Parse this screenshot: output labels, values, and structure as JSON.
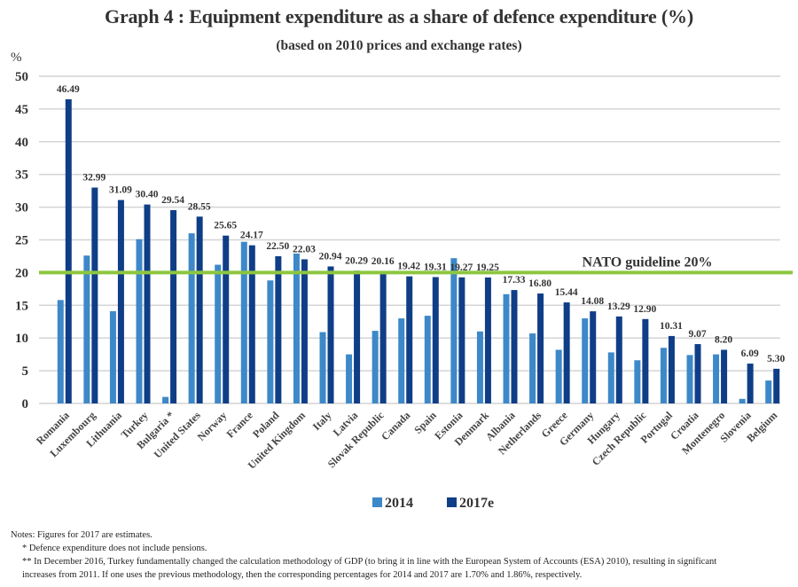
{
  "chart_data": {
    "type": "bar",
    "title": "Graph 4 : Equipment expenditure as a share of defence expenditure (%)",
    "subtitle": "(based on 2010 prices and exchange rates)",
    "xlabel": "",
    "ylabel": "%",
    "ylim": [
      0,
      50
    ],
    "yticks": [
      0,
      5,
      10,
      15,
      20,
      25,
      30,
      35,
      40,
      45,
      50
    ],
    "grid": true,
    "legend_position": "bottom-center",
    "categories": [
      "Romania",
      "Luxembourg",
      "Lithuania",
      "Turkey",
      "Bulgaria *",
      "United States",
      "Norway",
      "France",
      "Poland",
      "United Kingdom",
      "Italy",
      "Latvia",
      "Slovak Republic",
      "Canada",
      "Spain",
      "Estonia",
      "Denmark",
      "Albania",
      "Netherlands",
      "Greece",
      "Germany",
      "Hungary",
      "Czech Republic",
      "Portugal",
      "Croatia",
      "Montenegro",
      "Slovenia",
      "Belgium"
    ],
    "series": [
      {
        "name": "2014",
        "color": "#3d88c8",
        "values": [
          15.8,
          22.6,
          14.1,
          25.1,
          1.0,
          26.0,
          21.2,
          24.7,
          18.8,
          22.9,
          10.9,
          7.5,
          11.1,
          13.0,
          13.4,
          22.2,
          11.0,
          16.7,
          10.7,
          8.2,
          13.0,
          7.8,
          6.6,
          8.5,
          7.4,
          7.5,
          0.7,
          3.5
        ],
        "data_labels": false
      },
      {
        "name": "2017e",
        "color": "#0f3e87",
        "values": [
          46.49,
          32.99,
          31.09,
          30.4,
          29.54,
          28.55,
          25.65,
          24.17,
          22.5,
          22.03,
          20.94,
          20.29,
          20.16,
          19.42,
          19.31,
          19.27,
          19.25,
          17.33,
          16.8,
          15.44,
          14.08,
          13.29,
          12.9,
          10.31,
          9.07,
          8.2,
          6.09,
          5.3
        ],
        "labels": [
          "46.49",
          "32.99",
          "31.09",
          "30.40",
          "29.54",
          "28.55",
          "25.65",
          "24.17",
          "22.50",
          "22.03",
          "20.94",
          "20.29",
          "20.16",
          "19.42",
          "19.31",
          "19.27",
          "19.25",
          "17.33",
          "16.80",
          "15.44",
          "14.08",
          "13.29",
          "12.90",
          "10.31",
          "9.07",
          "8.20",
          "6.09",
          "5.30"
        ],
        "data_labels": true
      }
    ],
    "reference_line": {
      "value": 20,
      "label": "NATO guideline 20%",
      "color": "#8cc63f"
    }
  },
  "notes": {
    "line1": "Notes: Figures for 2017 are estimates.",
    "line2": "* Defence expenditure does not include pensions.",
    "line3": "** In December 2016, Turkey fundamentally changed the calculation methodology of GDP (to bring it in line with the European System of Accounts (ESA) 2010), resulting in significant",
    "line4": "increases from 2011. If one uses the previous methodology, then the corresponding percentages for 2014 and 2017 are 1.70% and 1.86%, respectively."
  }
}
